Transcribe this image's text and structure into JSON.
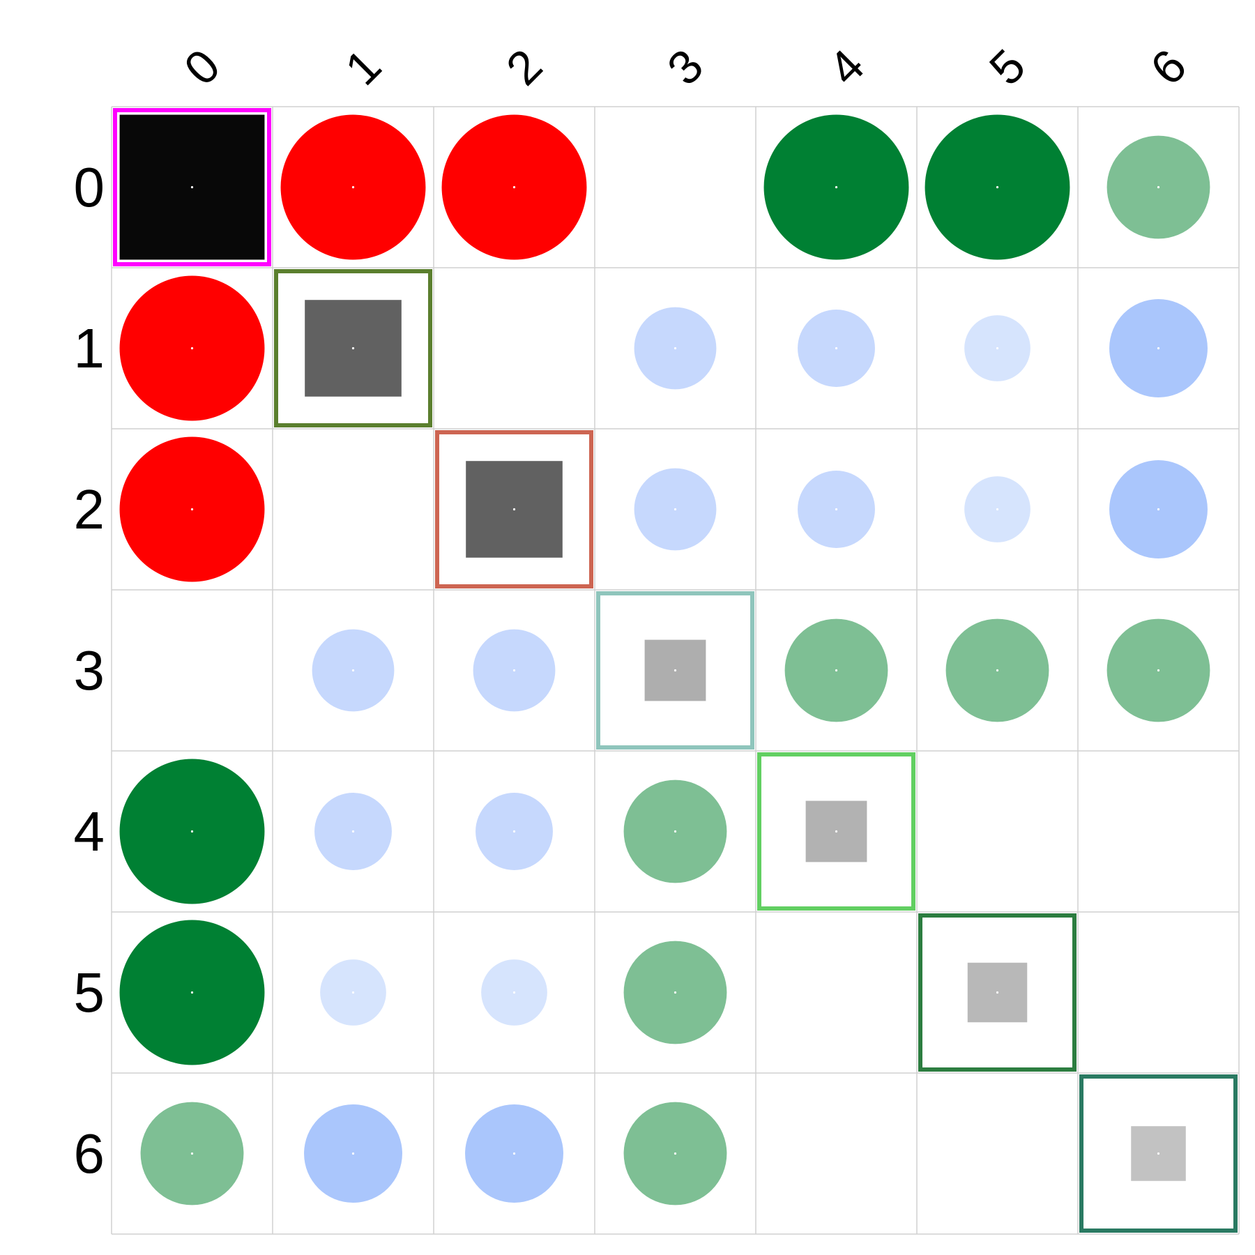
{
  "chart_data": {
    "type": "heatmap",
    "title": "",
    "xlabel": "",
    "ylabel": "",
    "x_tick_labels": [
      "0",
      "1",
      "2",
      "3",
      "4",
      "5",
      "6"
    ],
    "y_tick_labels": [
      "0",
      "1",
      "2",
      "3",
      "4",
      "5",
      "6"
    ],
    "grid": true,
    "grid_color": "#d0d0d0",
    "size_scale_max": 1.0,
    "diagonal_frame_colors": [
      "#ff00ff",
      "#5b7f2e",
      "#cd6552",
      "#8fc5bc",
      "#62cf62",
      "#2c7d40",
      "#2a7a62"
    ],
    "cells": [
      {
        "row": 0,
        "col": 0,
        "shape": "square",
        "size": 0.9,
        "color": "#080808",
        "framed": true
      },
      {
        "row": 0,
        "col": 1,
        "shape": "circle",
        "size": 0.9,
        "color": "#ff0000"
      },
      {
        "row": 0,
        "col": 2,
        "shape": "circle",
        "size": 0.9,
        "color": "#ff0000"
      },
      {
        "row": 0,
        "col": 4,
        "shape": "circle",
        "size": 0.9,
        "color": "#008033"
      },
      {
        "row": 0,
        "col": 5,
        "shape": "circle",
        "size": 0.9,
        "color": "#008033"
      },
      {
        "row": 0,
        "col": 6,
        "shape": "circle",
        "size": 0.64,
        "color": "#7ebf94"
      },
      {
        "row": 1,
        "col": 0,
        "shape": "circle",
        "size": 0.9,
        "color": "#ff0000"
      },
      {
        "row": 1,
        "col": 1,
        "shape": "square",
        "size": 0.6,
        "color": "#616161",
        "framed": true
      },
      {
        "row": 1,
        "col": 3,
        "shape": "circle",
        "size": 0.51,
        "color": "#c6d8fd"
      },
      {
        "row": 1,
        "col": 4,
        "shape": "circle",
        "size": 0.48,
        "color": "#c6d8fd"
      },
      {
        "row": 1,
        "col": 5,
        "shape": "circle",
        "size": 0.41,
        "color": "#d6e4fd"
      },
      {
        "row": 1,
        "col": 6,
        "shape": "circle",
        "size": 0.61,
        "color": "#aac6fc"
      },
      {
        "row": 2,
        "col": 0,
        "shape": "circle",
        "size": 0.9,
        "color": "#ff0000"
      },
      {
        "row": 2,
        "col": 2,
        "shape": "square",
        "size": 0.6,
        "color": "#616161",
        "framed": true
      },
      {
        "row": 2,
        "col": 3,
        "shape": "circle",
        "size": 0.51,
        "color": "#c6d8fd"
      },
      {
        "row": 2,
        "col": 4,
        "shape": "circle",
        "size": 0.48,
        "color": "#c6d8fd"
      },
      {
        "row": 2,
        "col": 5,
        "shape": "circle",
        "size": 0.41,
        "color": "#d6e4fd"
      },
      {
        "row": 2,
        "col": 6,
        "shape": "circle",
        "size": 0.61,
        "color": "#aac6fc"
      },
      {
        "row": 3,
        "col": 1,
        "shape": "circle",
        "size": 0.51,
        "color": "#c6d8fd"
      },
      {
        "row": 3,
        "col": 2,
        "shape": "circle",
        "size": 0.51,
        "color": "#c6d8fd"
      },
      {
        "row": 3,
        "col": 3,
        "shape": "square",
        "size": 0.38,
        "color": "#aeaeae",
        "framed": true
      },
      {
        "row": 3,
        "col": 4,
        "shape": "circle",
        "size": 0.64,
        "color": "#7ebf94"
      },
      {
        "row": 3,
        "col": 5,
        "shape": "circle",
        "size": 0.64,
        "color": "#7ebf94"
      },
      {
        "row": 3,
        "col": 6,
        "shape": "circle",
        "size": 0.64,
        "color": "#7ebf94"
      },
      {
        "row": 4,
        "col": 0,
        "shape": "circle",
        "size": 0.9,
        "color": "#008033"
      },
      {
        "row": 4,
        "col": 1,
        "shape": "circle",
        "size": 0.48,
        "color": "#c6d8fd"
      },
      {
        "row": 4,
        "col": 2,
        "shape": "circle",
        "size": 0.48,
        "color": "#c6d8fd"
      },
      {
        "row": 4,
        "col": 3,
        "shape": "circle",
        "size": 0.64,
        "color": "#7ebf94"
      },
      {
        "row": 4,
        "col": 4,
        "shape": "square",
        "size": 0.38,
        "color": "#b2b2b2",
        "framed": true
      },
      {
        "row": 5,
        "col": 0,
        "shape": "circle",
        "size": 0.9,
        "color": "#008033"
      },
      {
        "row": 5,
        "col": 1,
        "shape": "circle",
        "size": 0.41,
        "color": "#d6e4fd"
      },
      {
        "row": 5,
        "col": 2,
        "shape": "circle",
        "size": 0.41,
        "color": "#d6e4fd"
      },
      {
        "row": 5,
        "col": 3,
        "shape": "circle",
        "size": 0.64,
        "color": "#7ebf94"
      },
      {
        "row": 5,
        "col": 5,
        "shape": "square",
        "size": 0.37,
        "color": "#b8b8b8",
        "framed": true
      },
      {
        "row": 6,
        "col": 0,
        "shape": "circle",
        "size": 0.64,
        "color": "#7ebf94"
      },
      {
        "row": 6,
        "col": 1,
        "shape": "circle",
        "size": 0.61,
        "color": "#aac6fc"
      },
      {
        "row": 6,
        "col": 2,
        "shape": "circle",
        "size": 0.61,
        "color": "#aac6fc"
      },
      {
        "row": 6,
        "col": 3,
        "shape": "circle",
        "size": 0.64,
        "color": "#7ebf94"
      },
      {
        "row": 6,
        "col": 6,
        "shape": "square",
        "size": 0.34,
        "color": "#c2c2c2",
        "framed": true
      }
    ]
  }
}
